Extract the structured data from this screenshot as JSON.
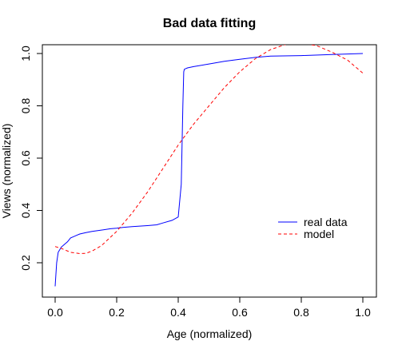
{
  "chart_data": {
    "type": "line",
    "title": "Bad data fitting",
    "xlabel": "Age (normalized)",
    "ylabel": "Views (normalized)",
    "xlim": [
      0,
      1
    ],
    "ylim": [
      0.1,
      1.03
    ],
    "xticks": [
      "0.0",
      "0.2",
      "0.4",
      "0.6",
      "0.8",
      "1.0"
    ],
    "yticks": [
      "0.2",
      "0.4",
      "0.6",
      "0.8",
      "1.0"
    ],
    "grid": false,
    "legend_position": "right",
    "series": [
      {
        "name": "real data",
        "color": "#0000ff",
        "style": "solid",
        "x": [
          0.0,
          0.005,
          0.01,
          0.015,
          0.02,
          0.03,
          0.04,
          0.05,
          0.06,
          0.07,
          0.08,
          0.1,
          0.12,
          0.15,
          0.18,
          0.2,
          0.22,
          0.25,
          0.3,
          0.33,
          0.35,
          0.38,
          0.4,
          0.41,
          0.415,
          0.418,
          0.42,
          0.43,
          0.45,
          0.5,
          0.55,
          0.6,
          0.65,
          0.7,
          0.8,
          0.9,
          1.0
        ],
        "y": [
          0.11,
          0.2,
          0.24,
          0.25,
          0.26,
          0.27,
          0.28,
          0.295,
          0.3,
          0.305,
          0.31,
          0.315,
          0.32,
          0.325,
          0.33,
          0.332,
          0.335,
          0.338,
          0.342,
          0.345,
          0.352,
          0.362,
          0.375,
          0.5,
          0.8,
          0.93,
          0.94,
          0.945,
          0.95,
          0.96,
          0.97,
          0.978,
          0.985,
          0.99,
          0.992,
          0.996,
          1.0
        ]
      },
      {
        "name": "model",
        "color": "#ff0000",
        "style": "dashed",
        "x": [
          0.0,
          0.02,
          0.05,
          0.08,
          0.1,
          0.12,
          0.15,
          0.2,
          0.25,
          0.3,
          0.35,
          0.4,
          0.45,
          0.5,
          0.55,
          0.6,
          0.65,
          0.7,
          0.75,
          0.8,
          0.85,
          0.9,
          0.95,
          1.0
        ],
        "y": [
          0.262,
          0.255,
          0.24,
          0.235,
          0.236,
          0.245,
          0.265,
          0.32,
          0.39,
          0.47,
          0.56,
          0.65,
          0.73,
          0.8,
          0.87,
          0.93,
          0.98,
          1.015,
          1.035,
          1.04,
          1.03,
          1.005,
          0.975,
          0.925
        ]
      }
    ]
  }
}
